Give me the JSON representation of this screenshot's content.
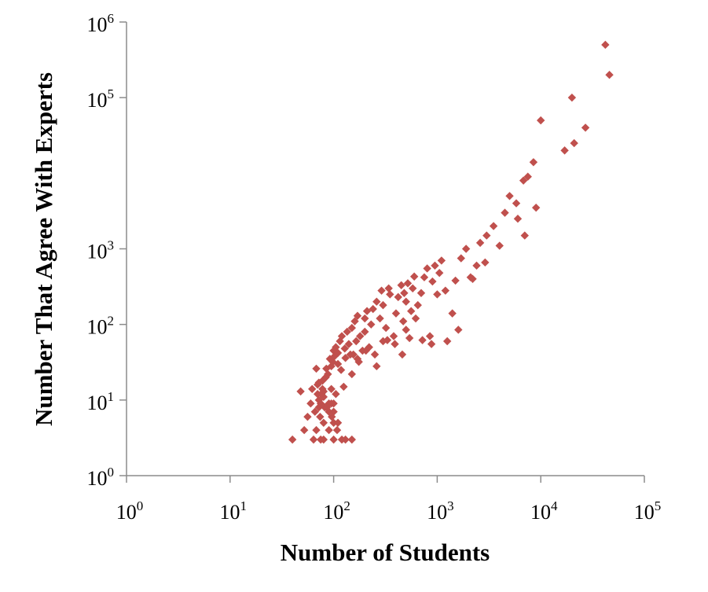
{
  "chart_data": {
    "type": "scatter",
    "xlabel": "Number of Students",
    "ylabel": "Number That Agree With Experts",
    "xscale": "log",
    "yscale": "log",
    "xlim": [
      1,
      100000
    ],
    "ylim": [
      1,
      1000000
    ],
    "grid": false,
    "legend": "none",
    "marker": "diamond",
    "marker_color": "#c0504d",
    "x_ticks": [
      {
        "base": "10",
        "exp": "0",
        "value": 1
      },
      {
        "base": "10",
        "exp": "1",
        "value": 10
      },
      {
        "base": "10",
        "exp": "2",
        "value": 100
      },
      {
        "base": "10",
        "exp": "3",
        "value": 1000
      },
      {
        "base": "10",
        "exp": "4",
        "value": 10000
      },
      {
        "base": "10",
        "exp": "5",
        "value": 100000
      }
    ],
    "y_ticks": [
      {
        "base": "10",
        "exp": "0",
        "value": 1
      },
      {
        "base": "10",
        "exp": "1",
        "value": 10
      },
      {
        "base": "10",
        "exp": "2",
        "value": 100
      },
      {
        "base": "10",
        "exp": "3",
        "value": 1000
      },
      {
        "base": "10",
        "exp": "5",
        "value": 100000
      },
      {
        "base": "10",
        "exp": "6",
        "value": 1000000
      }
    ],
    "x": [
      40,
      48,
      52,
      56,
      60,
      62,
      64,
      66,
      68,
      70,
      70,
      72,
      72,
      74,
      75,
      75,
      78,
      78,
      80,
      80,
      80,
      82,
      84,
      85,
      88,
      90,
      90,
      92,
      95,
      95,
      95,
      98,
      100,
      100,
      100,
      100,
      102,
      105,
      105,
      110,
      110,
      115,
      118,
      120,
      125,
      128,
      130,
      135,
      140,
      150,
      150,
      155,
      160,
      165,
      170,
      170,
      180,
      190,
      200,
      200,
      210,
      220,
      230,
      240,
      250,
      260,
      280,
      290,
      300,
      300,
      320,
      340,
      350,
      380,
      400,
      420,
      450,
      470,
      480,
      500,
      500,
      520,
      560,
      580,
      600,
      650,
      700,
      750,
      800,
      850,
      900,
      950,
      1000,
      1050,
      1100,
      1200,
      1400,
      1500,
      1700,
      1900,
      2100,
      2400,
      2600,
      3000,
      3500,
      4000,
      4500,
      5000,
      5800,
      6000,
      6800,
      7000,
      7500,
      8500,
      9000,
      10000,
      17000,
      20000,
      21000,
      27000,
      42000,
      46000,
      80,
      90,
      100,
      110,
      130,
      150,
      68,
      72,
      76,
      86,
      96,
      108,
      120,
      145,
      175,
      205,
      260,
      330,
      390,
      460,
      540,
      620,
      720,
      880,
      1250,
      1600,
      2200,
      2900
    ],
    "y": [
      3,
      13,
      4,
      6,
      9,
      14,
      3,
      7,
      4,
      12,
      16,
      8,
      10,
      6,
      3,
      9,
      14,
      18,
      3,
      5,
      11,
      8,
      20,
      26,
      22,
      4,
      7,
      35,
      9,
      14,
      28,
      32,
      3,
      5,
      9,
      45,
      38,
      12,
      50,
      30,
      42,
      60,
      25,
      70,
      15,
      48,
      36,
      80,
      55,
      22,
      90,
      40,
      110,
      60,
      35,
      130,
      70,
      45,
      120,
      80,
      150,
      50,
      100,
      160,
      40,
      200,
      120,
      280,
      60,
      180,
      90,
      300,
      250,
      70,
      140,
      230,
      330,
      110,
      260,
      200,
      85,
      350,
      150,
      300,
      430,
      180,
      260,
      420,
      550,
      70,
      370,
      600,
      250,
      480,
      700,
      280,
      140,
      380,
      750,
      1000,
      420,
      600,
      1200,
      1500,
      2000,
      1100,
      3000,
      5000,
      4000,
      2500,
      8000,
      1500,
      9000,
      14000,
      3500,
      50000,
      20000,
      100000,
      25000,
      40000,
      500000,
      200000,
      13,
      9,
      7,
      5,
      3,
      3,
      26,
      17,
      12,
      8,
      6,
      4,
      3,
      40,
      32,
      45,
      28,
      62,
      55,
      40,
      66,
      120,
      62,
      55,
      60,
      85,
      400,
      660
    ]
  }
}
